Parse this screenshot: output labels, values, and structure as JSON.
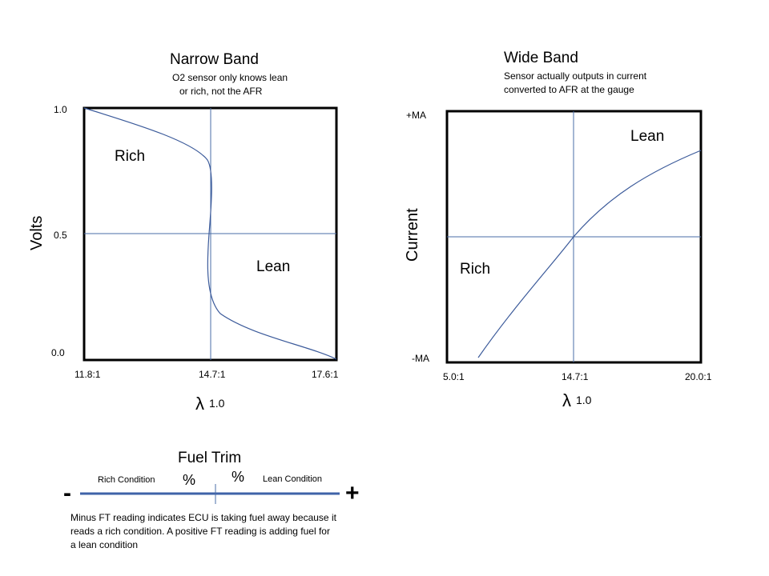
{
  "narrow": {
    "title": "Narrow Band",
    "note_line1": "O2 sensor only knows lean",
    "note_line2": "or rich, not the AFR",
    "y_ticks": [
      "1.0",
      "0.5",
      "0.0"
    ],
    "x_ticks": [
      "11.8:1",
      "14.7:1",
      "17.6:1"
    ],
    "ylabel": "Volts",
    "rich_label": "Rich",
    "lean_label": "Lean",
    "lambda_symbol": "λ",
    "lambda_value": "1.0"
  },
  "wide": {
    "title": "Wide Band",
    "note_line1": "Sensor  actually outputs in current",
    "note_line2": "converted to AFR at the gauge",
    "y_ticks": [
      "+MA",
      "-MA"
    ],
    "x_ticks": [
      "5.0:1",
      "14.7:1",
      "20.0:1"
    ],
    "ylabel": "Current",
    "rich_label": "Rich",
    "lean_label": "Lean",
    "lambda_symbol": "λ",
    "lambda_value": "1.0"
  },
  "fuel_trim": {
    "title": "Fuel Trim",
    "rich_label": "Rich Condition",
    "lean_label": "Lean Condition",
    "pct_left": "%",
    "pct_right": "%",
    "minus": "-",
    "plus": "+",
    "desc_line1": "Minus FT reading indicates ECU is taking fuel away because it",
    "desc_line2": "reads a rich condition.  A positive FT reading is adding fuel for",
    "desc_line3": "a lean condition"
  },
  "colors": {
    "frame": "#000000",
    "curve": "#3b5a9a",
    "guide": "#4a6da7",
    "trim_bar": "#3f63a8"
  }
}
